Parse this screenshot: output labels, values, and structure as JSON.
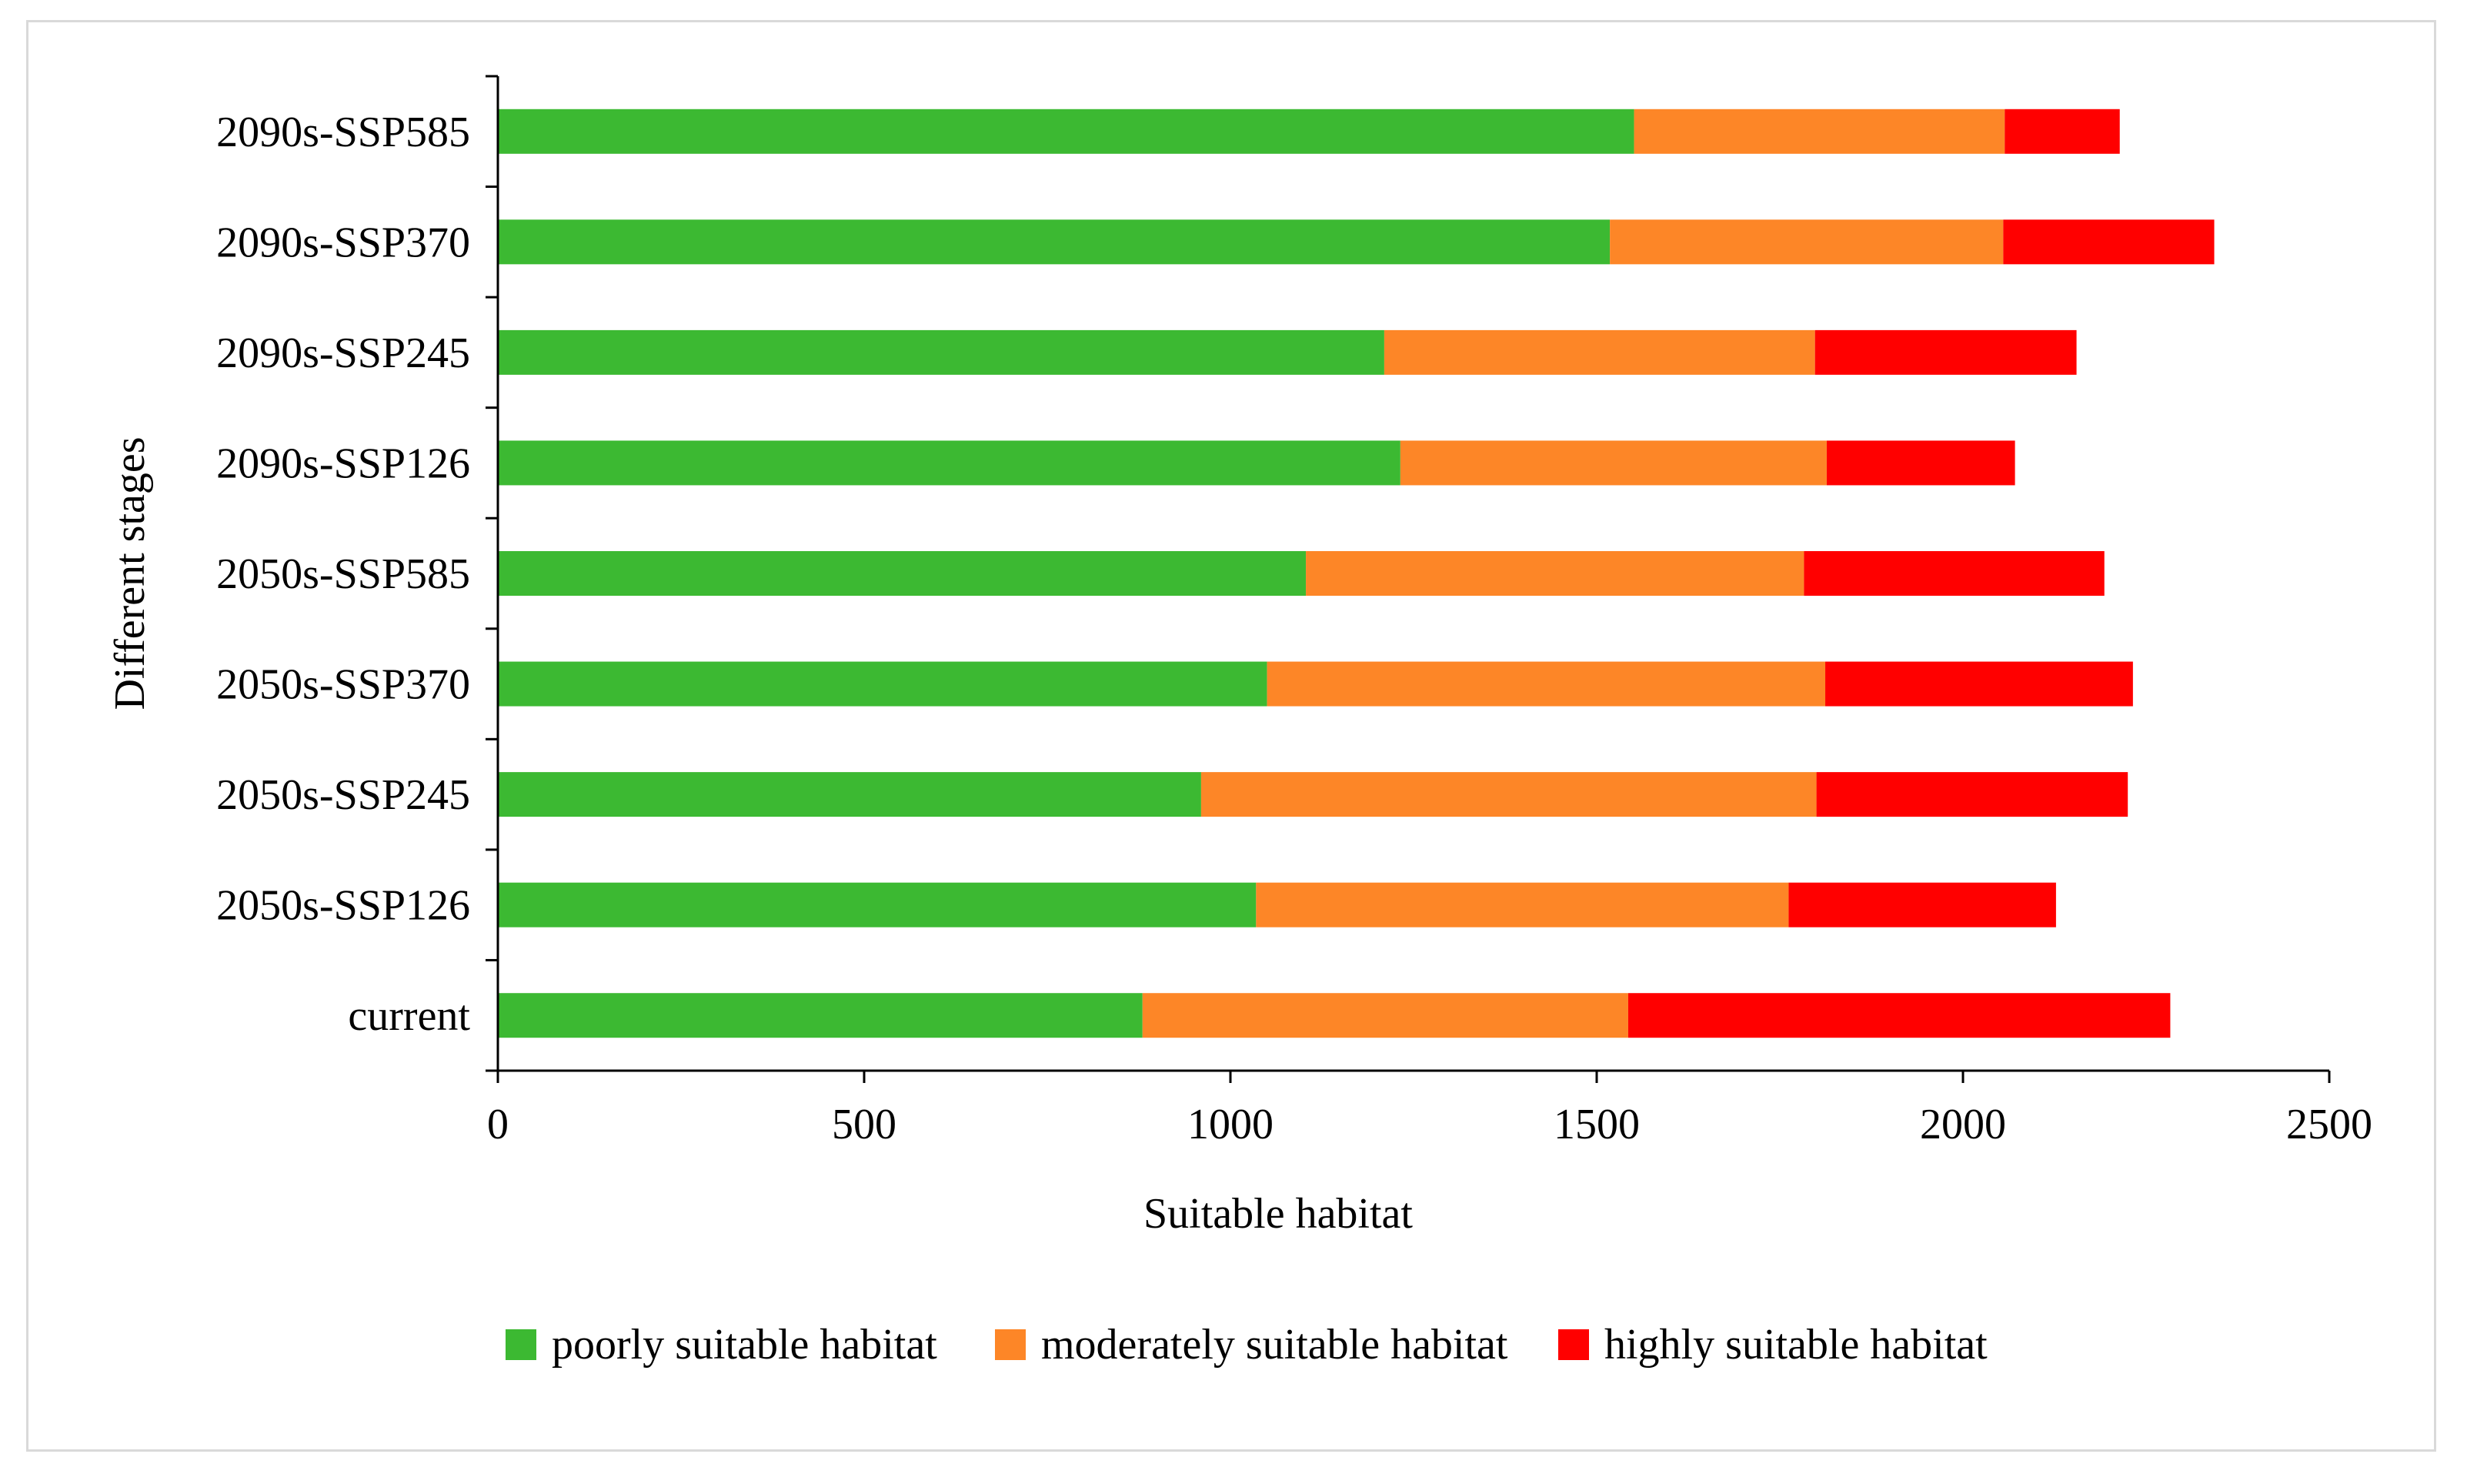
{
  "chart_data": {
    "type": "bar",
    "orientation": "horizontal",
    "stacked": true,
    "title": "",
    "xlabel": "Suitable habitat",
    "ylabel": "Different stages",
    "xlim": [
      0,
      2500
    ],
    "xticks": [
      0,
      500,
      1000,
      1500,
      2000,
      2500
    ],
    "grid": false,
    "legend_position": "bottom",
    "categories": [
      "current",
      "2050s-SSP126",
      "2050s-SSP245",
      "2050s-SSP370",
      "2050s-SSP585",
      "2090s-SSP126",
      "2090s-SSP245",
      "2090s-SSP370",
      "2090s-SSP585"
    ],
    "series": [
      {
        "name": "poorly suitable habitat",
        "color": "#3cb932",
        "values": [
          880,
          1035,
          960,
          1050,
          1103,
          1232,
          1210,
          1518,
          1551
        ]
      },
      {
        "name": "moderately suitable habitat",
        "color": "#fd8627",
        "values": [
          663,
          727,
          840,
          762,
          680,
          582,
          588,
          537,
          506
        ]
      },
      {
        "name": "highly suitable habitat",
        "color": "#ff0000",
        "values": [
          740,
          365,
          425,
          420,
          410,
          257,
          357,
          288,
          157
        ]
      }
    ]
  }
}
